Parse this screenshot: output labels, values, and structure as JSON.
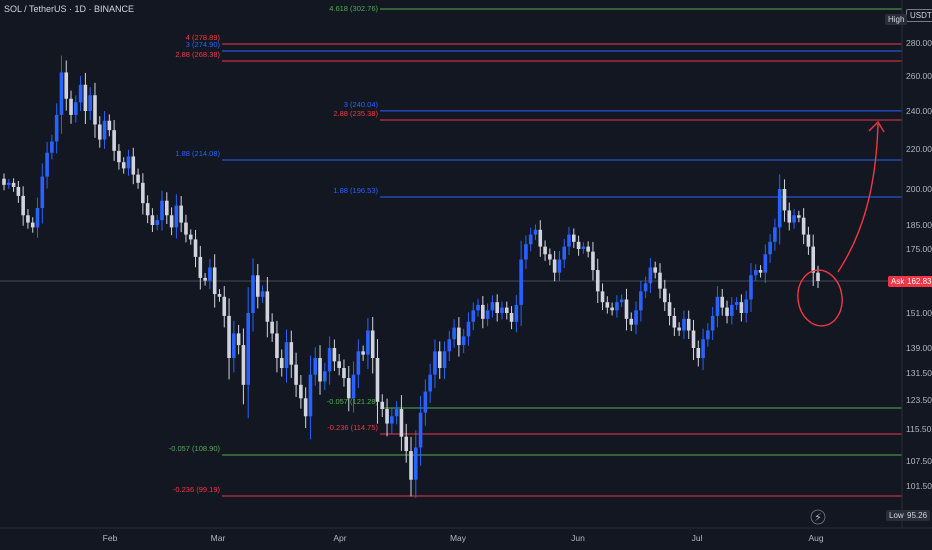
{
  "header": {
    "symbol": "SOL / TetherUS · 1D · BINANCE"
  },
  "badges": {
    "currency": "USDT",
    "high": "High",
    "low": "Low",
    "low_value": "95.26",
    "ask": "Ask",
    "ask_value": "162.83"
  },
  "colors": {
    "bg": "#131722",
    "up": "#2962ff",
    "down": "#d1d4dc",
    "green": "#4caf50",
    "red": "#f23645",
    "blue": "#2962ff",
    "annot": "#f23645"
  },
  "chart_data": {
    "type": "candlestick",
    "x_ticks": [
      "Feb",
      "Mar",
      "Apr",
      "May",
      "Jun",
      "Jul",
      "Aug"
    ],
    "y_ticks": [
      101.5,
      107.5,
      115.5,
      123.5,
      131.5,
      139,
      151,
      162,
      175,
      185,
      200,
      220,
      240,
      260,
      280
    ],
    "levels": [
      {
        "label": "4.618 (302.76)",
        "color": "green"
      },
      {
        "label": "4 (278.89)",
        "value": 278.89,
        "color": "red"
      },
      {
        "label": "3 (274.90)",
        "value": 274.9,
        "color": "blue"
      },
      {
        "label": "2.88 (268.38)",
        "value": 268.38,
        "color": "red"
      },
      {
        "label": "3 (240.04)",
        "value": 240.04,
        "color": "blue"
      },
      {
        "label": "2.88 (235.38)",
        "value": 235.38,
        "color": "red"
      },
      {
        "label": "1.88 (214.08)",
        "value": 214.08,
        "color": "blue"
      },
      {
        "label": "1.88 (196.53)",
        "value": 196.53,
        "color": "blue"
      },
      {
        "label": "-0.057 (121.28)",
        "value": 121.28,
        "color": "green"
      },
      {
        "label": "-0.236 (114.75)",
        "value": 114.75,
        "color": "red"
      },
      {
        "label": "-0.057 (108.90)",
        "value": 108.9,
        "color": "green"
      },
      {
        "label": "-0.236 (99.19)",
        "value": 99.19,
        "color": "red"
      }
    ],
    "last_price": 162.83,
    "low": 95.26,
    "candles_close": [
      202,
      203,
      201,
      197,
      189,
      186,
      184,
      192,
      206,
      218,
      224,
      238,
      262,
      247,
      238,
      245,
      255,
      240,
      249,
      233,
      225,
      235,
      230,
      219,
      213,
      210,
      216,
      207,
      203,
      194,
      189,
      185,
      187,
      195,
      189,
      184,
      193,
      186,
      181,
      179,
      172,
      164,
      163,
      168,
      158,
      157,
      150,
      136,
      144,
      140,
      128,
      151,
      165,
      157,
      159,
      148,
      144,
      136,
      133,
      141,
      134,
      128,
      124,
      119,
      131,
      136,
      129,
      132,
      139,
      135,
      133,
      130,
      124,
      131,
      138,
      137,
      145,
      136,
      123,
      121,
      117,
      119,
      121,
      114,
      110,
      103,
      111,
      120,
      126,
      131,
      138,
      133,
      138,
      142,
      146,
      140,
      143,
      148,
      152,
      154,
      149,
      152,
      155,
      151,
      153,
      151,
      148,
      154,
      171,
      177,
      181,
      183,
      176,
      173,
      171,
      166,
      171,
      176,
      181,
      178,
      175,
      176,
      174,
      167,
      159,
      155,
      153,
      152,
      155,
      156,
      149,
      147,
      152,
      159,
      162,
      168,
      166,
      160,
      155,
      150,
      146,
      145,
      149,
      145,
      139,
      136,
      142,
      145,
      150,
      157,
      153,
      150,
      154,
      155,
      151,
      156,
      165,
      167,
      166,
      173,
      178,
      184,
      200,
      191,
      186,
      189,
      188,
      181,
      176,
      166,
      162.83
    ]
  }
}
